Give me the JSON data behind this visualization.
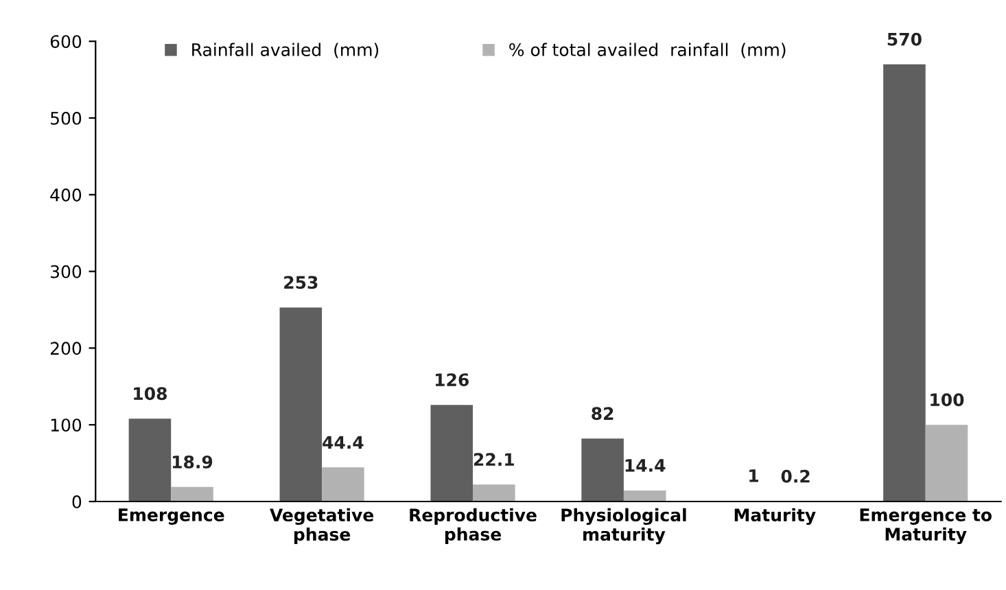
{
  "chart_data": {
    "type": "bar",
    "categories": [
      "Emergence",
      "Vegetative\nphase",
      "Reproductive\nphase",
      "Physiological\nmaturity",
      "Maturity",
      "Emergence to\nMaturity"
    ],
    "series": [
      {
        "name": "Rainfall availed  (mm)",
        "color": "#5f5f5f",
        "values": [
          108,
          253,
          126,
          82,
          1,
          570
        ]
      },
      {
        "name": "% of total availed  rainfall  (mm)",
        "color": "#b2b2b2",
        "values": [
          18.9,
          44.4,
          22.1,
          14.4,
          0.2,
          100
        ]
      }
    ],
    "ylim": [
      0,
      600
    ],
    "yticks": [
      0,
      100,
      200,
      300,
      400,
      500,
      600
    ],
    "data_labels": true,
    "grid": false,
    "legend": "top"
  }
}
